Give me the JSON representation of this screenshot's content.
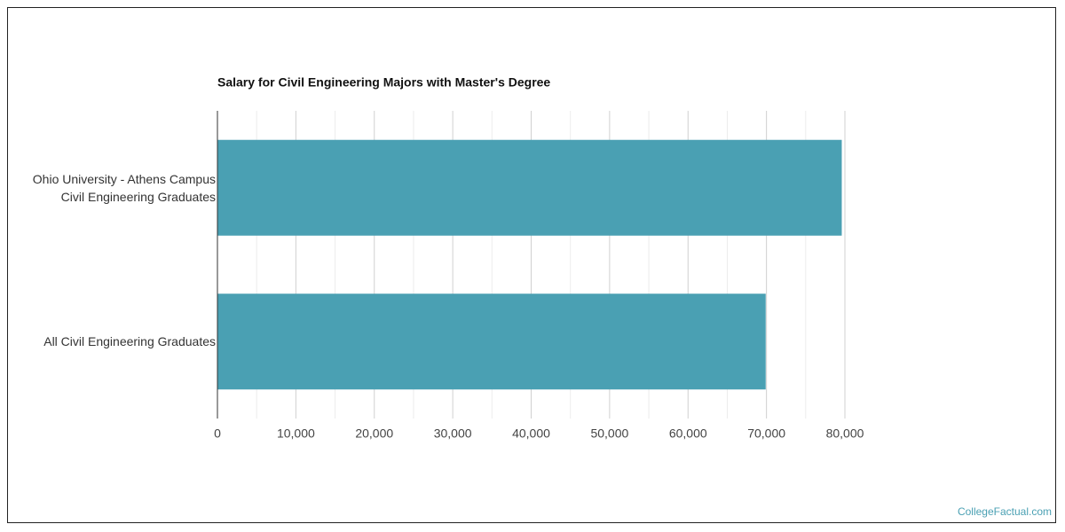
{
  "chart_data": {
    "type": "bar",
    "orientation": "horizontal",
    "title": "Salary for Civil Engineering Majors with Master's Degree",
    "categories": [
      "Ohio University - Athens Campus\nCivil Engineering Graduates",
      "All Civil Engineering Graduates"
    ],
    "values": [
      79600,
      69900
    ],
    "color": "#4aa0b3",
    "xlim": [
      0,
      80000
    ],
    "xticks": [
      0,
      {
        "value": 10000,
        "label": "10,000"
      },
      {
        "value": 20000,
        "label": "20,000"
      },
      {
        "value": 30000,
        "label": "30,000"
      },
      {
        "value": 40000,
        "label": "40,000"
      },
      {
        "value": 50000,
        "label": "50,000"
      },
      {
        "value": 60000,
        "label": "60,000"
      },
      {
        "value": 70000,
        "label": "70,000"
      },
      {
        "value": 80000,
        "label": "80,000"
      }
    ],
    "minor_xticks": [
      5000,
      15000,
      25000,
      35000,
      45000,
      55000,
      65000,
      75000
    ],
    "grid": true,
    "source": "CollegeFactual.com"
  }
}
